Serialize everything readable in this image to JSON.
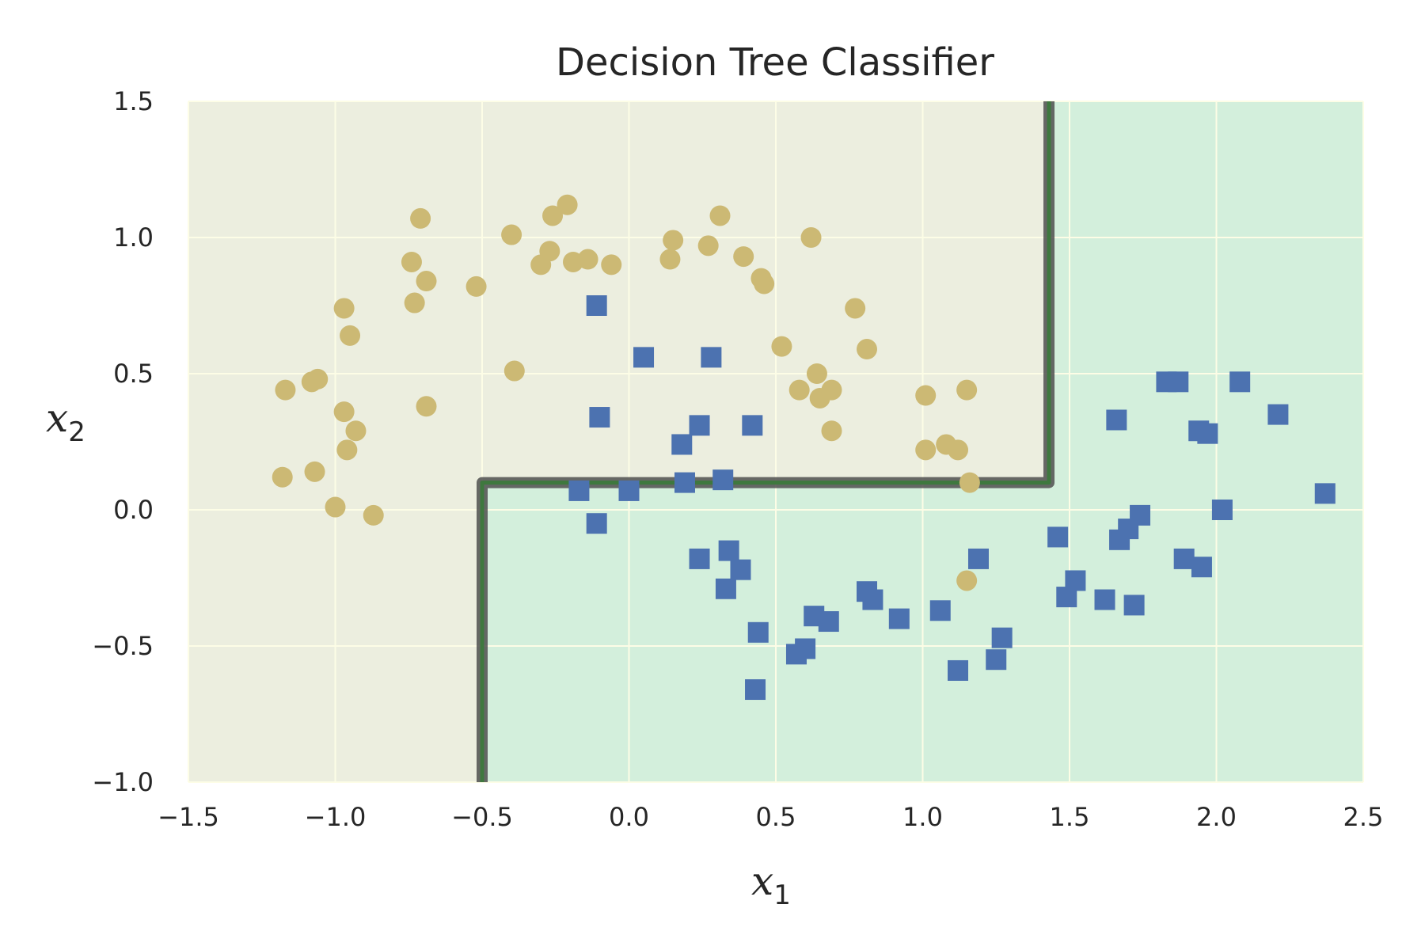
{
  "chart_data": {
    "type": "scatter",
    "title": "Decision Tree Classifier",
    "xlabel": "x",
    "xlabel_sub": "1",
    "ylabel": "x",
    "ylabel_sub": "2",
    "xlim": [
      -1.5,
      2.5
    ],
    "ylim": [
      -1.0,
      1.5
    ],
    "xticks": [
      -1.5,
      -1.0,
      -0.5,
      0.0,
      0.5,
      1.0,
      1.5,
      2.0,
      2.5
    ],
    "yticks": [
      -1.0,
      -0.5,
      0.0,
      0.5,
      1.0,
      1.5
    ],
    "xtick_labels": [
      "−1.5",
      "−1.0",
      "−0.5",
      "0.0",
      "0.5",
      "1.0",
      "1.5",
      "2.0",
      "2.5"
    ],
    "ytick_labels": [
      "−1.0",
      "−0.5",
      "0.0",
      "0.5",
      "1.0",
      "1.5"
    ],
    "grid": true,
    "colors": {
      "background": "#ffffff",
      "region_class0": "#eceedf",
      "region_class1": "#d3efdc",
      "grid": "#fdfde6",
      "boundary_outer": "#4f4f4f",
      "boundary_inner": "#3a7a3a",
      "class0_marker": "#ccb974",
      "class1_marker": "#4c72b0"
    },
    "decision_boundary": {
      "splits": {
        "x1_left": -0.5,
        "x2": 0.1,
        "x1_right": 1.43
      },
      "path": [
        [
          -0.5,
          -1.0
        ],
        [
          -0.5,
          0.1
        ],
        [
          1.43,
          0.1
        ],
        [
          1.43,
          1.5
        ]
      ]
    },
    "series": [
      {
        "marker": "circle",
        "color": "#ccb974",
        "points": [
          [
            -1.17,
            0.44
          ],
          [
            -1.08,
            0.47
          ],
          [
            -1.06,
            0.48
          ],
          [
            -0.97,
            0.74
          ],
          [
            -0.95,
            0.64
          ],
          [
            -0.74,
            0.91
          ],
          [
            -0.73,
            0.76
          ],
          [
            -0.71,
            1.07
          ],
          [
            -0.69,
            0.84
          ],
          [
            -0.69,
            0.38
          ],
          [
            -0.52,
            0.82
          ],
          [
            -0.4,
            1.01
          ],
          [
            -0.39,
            0.51
          ],
          [
            -0.3,
            0.9
          ],
          [
            -0.27,
            0.95
          ],
          [
            -0.26,
            1.08
          ],
          [
            -0.21,
            1.12
          ],
          [
            -0.19,
            0.91
          ],
          [
            -0.14,
            0.92
          ],
          [
            -0.06,
            0.9
          ],
          [
            0.14,
            0.92
          ],
          [
            0.15,
            0.99
          ],
          [
            0.27,
            0.97
          ],
          [
            0.31,
            1.08
          ],
          [
            0.39,
            0.93
          ],
          [
            0.45,
            0.85
          ],
          [
            0.46,
            0.83
          ],
          [
            0.52,
            0.6
          ],
          [
            0.58,
            0.44
          ],
          [
            0.62,
            1.0
          ],
          [
            0.64,
            0.5
          ],
          [
            0.65,
            0.41
          ],
          [
            0.69,
            0.44
          ],
          [
            0.69,
            0.29
          ],
          [
            0.77,
            0.74
          ],
          [
            0.81,
            0.59
          ],
          [
            1.01,
            0.42
          ],
          [
            1.01,
            0.22
          ],
          [
            1.08,
            0.24
          ],
          [
            1.12,
            0.22
          ],
          [
            1.15,
            0.44
          ],
          [
            1.16,
            0.1
          ],
          [
            1.15,
            -0.26
          ],
          [
            -0.97,
            0.36
          ],
          [
            -0.96,
            0.22
          ],
          [
            -0.93,
            0.29
          ],
          [
            -1.07,
            0.14
          ],
          [
            -1.18,
            0.12
          ],
          [
            -1.0,
            0.01
          ],
          [
            -0.87,
            -0.02
          ]
        ]
      },
      {
        "marker": "square",
        "color": "#4c72b0",
        "points": [
          [
            -0.11,
            0.75
          ],
          [
            0.05,
            0.56
          ],
          [
            0.28,
            0.56
          ],
          [
            -0.1,
            0.34
          ],
          [
            0.24,
            0.31
          ],
          [
            0.42,
            0.31
          ],
          [
            0.18,
            0.24
          ],
          [
            0.19,
            0.1
          ],
          [
            0.32,
            0.11
          ],
          [
            -0.17,
            0.07
          ],
          [
            0.0,
            0.07
          ],
          [
            -0.11,
            -0.05
          ],
          [
            0.24,
            -0.18
          ],
          [
            0.34,
            -0.15
          ],
          [
            0.38,
            -0.22
          ],
          [
            0.33,
            -0.29
          ],
          [
            0.44,
            -0.45
          ],
          [
            0.43,
            -0.66
          ],
          [
            0.57,
            -0.53
          ],
          [
            0.6,
            -0.51
          ],
          [
            0.63,
            -0.39
          ],
          [
            0.68,
            -0.41
          ],
          [
            0.81,
            -0.3
          ],
          [
            0.83,
            -0.33
          ],
          [
            0.92,
            -0.4
          ],
          [
            1.06,
            -0.37
          ],
          [
            1.12,
            -0.59
          ],
          [
            1.19,
            -0.18
          ],
          [
            1.25,
            -0.55
          ],
          [
            1.27,
            -0.47
          ],
          [
            1.46,
            -0.1
          ],
          [
            1.49,
            -0.32
          ],
          [
            1.52,
            -0.26
          ],
          [
            1.62,
            -0.33
          ],
          [
            1.67,
            -0.11
          ],
          [
            1.66,
            0.33
          ],
          [
            1.7,
            -0.07
          ],
          [
            1.72,
            -0.35
          ],
          [
            1.74,
            -0.02
          ],
          [
            1.83,
            0.47
          ],
          [
            1.87,
            0.47
          ],
          [
            1.89,
            -0.18
          ],
          [
            1.94,
            0.29
          ],
          [
            1.95,
            -0.21
          ],
          [
            1.97,
            0.28
          ],
          [
            2.02,
            0.0
          ],
          [
            2.08,
            0.47
          ],
          [
            2.21,
            0.35
          ],
          [
            2.37,
            0.06
          ]
        ]
      }
    ]
  }
}
